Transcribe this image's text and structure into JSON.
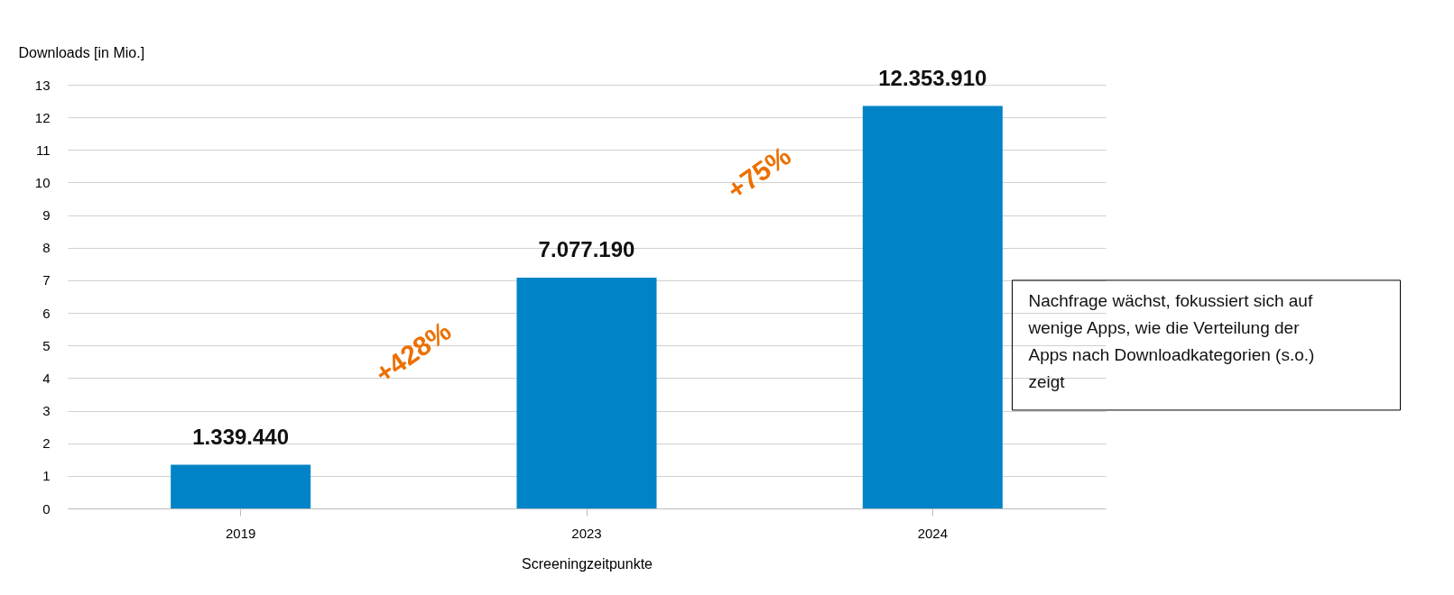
{
  "chart_data": {
    "type": "bar",
    "xlabel": "Screeningzeitpunkte",
    "ylabel": "Downloads [in Mio.]",
    "categories": [
      "2019",
      "2023",
      "2024"
    ],
    "values": [
      1.34,
      7.08,
      12.35
    ],
    "color": "#0084c7",
    "ylim": [
      0,
      13
    ],
    "yticks": [
      0,
      1,
      2,
      3,
      4,
      5,
      6,
      7,
      8,
      9,
      10,
      11,
      12,
      13
    ],
    "grid": "y",
    "annotations": [
      {
        "text": "1.339.440",
        "x": "2019",
        "y": 1.34
      },
      {
        "text": "7.077.190",
        "x": "2023",
        "y": 7.08
      },
      {
        "text": "12.353.910",
        "x": "2024",
        "y": 12.35
      },
      "+428%",
      "+75%",
      "Nachfrage wächst, fokussiert sich auf\nwenige Apps, wie die Verteilung der\nApps nach Downloadkategorien (s.o.)\nzeigt"
    ]
  }
}
